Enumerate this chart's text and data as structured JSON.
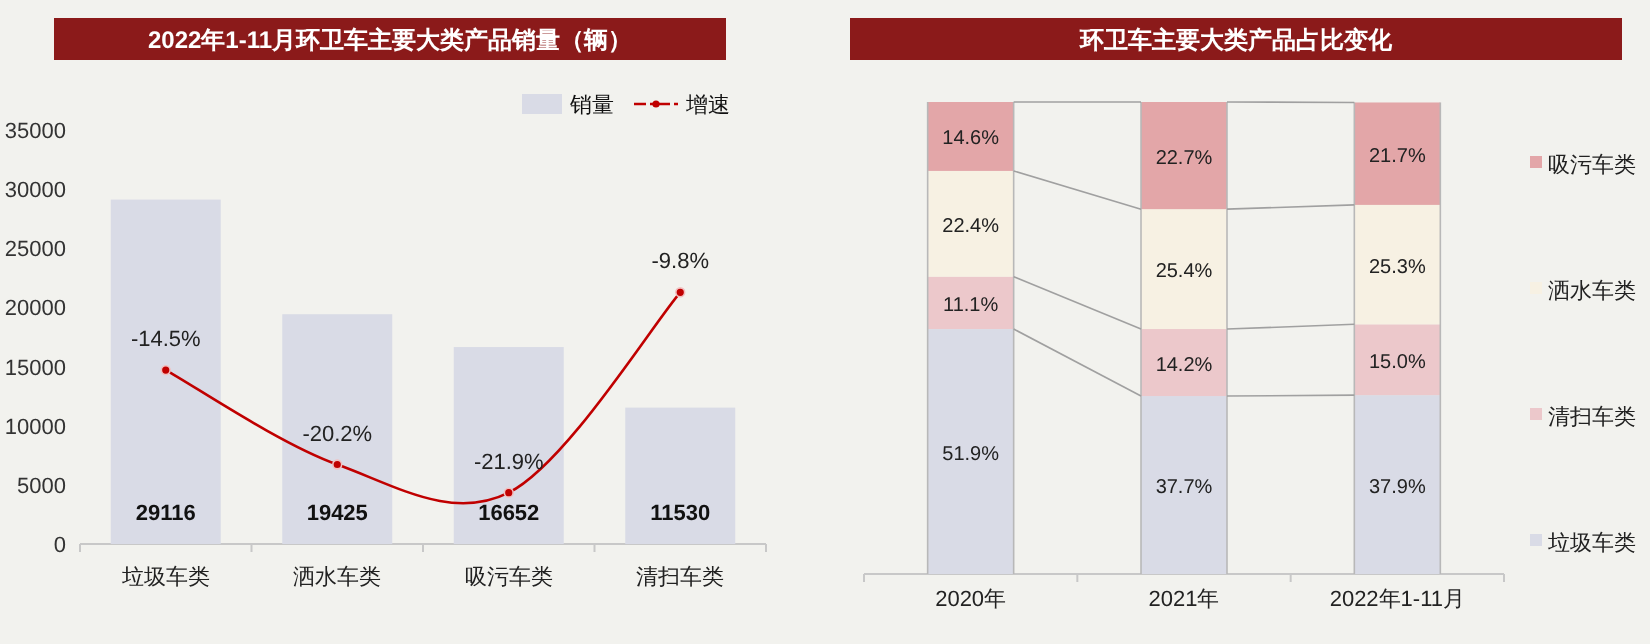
{
  "chart_data": [
    {
      "type": "bar",
      "title": "2022年1-11月环卫车主要大类产品销量（辆）",
      "categories": [
        "垃圾车类",
        "洒水车类",
        "吸污车类",
        "清扫车类"
      ],
      "series": [
        {
          "name": "销量",
          "color": "#d9dbe6",
          "values": [
            29116,
            19425,
            16652,
            11530
          ],
          "value_labels": [
            "29116",
            "19425",
            "16652",
            "11530"
          ]
        },
        {
          "name": "增速",
          "type": "line",
          "axis": "y2",
          "color": "#c00000",
          "values": [
            -14.5,
            -20.2,
            -21.9,
            -9.8
          ],
          "value_labels": [
            "-14.5%",
            "-20.2%",
            "-21.9%",
            "-9.8%"
          ]
        }
      ],
      "ylim": [
        0,
        35000
      ],
      "yticks": [
        0,
        5000,
        10000,
        15000,
        20000,
        25000,
        30000,
        35000
      ],
      "y2lim": [
        -25,
        0
      ],
      "legend": "top right",
      "marker": "circle"
    },
    {
      "type": "bar",
      "title": "环卫车主要大类产品占比变化",
      "categories": [
        "2020年",
        "2021年",
        "2022年1-11月"
      ],
      "stacked": true,
      "series": [
        {
          "name": "垃圾车类",
          "color": "#d9dbe6",
          "values": [
            51.9,
            37.7,
            37.9
          ],
          "value_labels": [
            "51.9%",
            "37.7%",
            "37.9%"
          ]
        },
        {
          "name": "清扫车类",
          "color": "#ecc8cb",
          "values": [
            11.1,
            14.2,
            15.0
          ],
          "value_labels": [
            "11.1%",
            "14.2%",
            "15.0%"
          ]
        },
        {
          "name": "洒水车类",
          "color": "#f7f1e3",
          "values": [
            22.4,
            25.4,
            25.3
          ],
          "value_labels": [
            "22.4%",
            "25.4%",
            "25.3%"
          ]
        },
        {
          "name": "吸污车类",
          "color": "#e3a6a8",
          "values": [
            14.6,
            22.7,
            21.7
          ],
          "value_labels": [
            "14.6%",
            "22.7%",
            "21.7%"
          ]
        }
      ],
      "ylim": [
        0,
        100
      ],
      "tick_labels": "x",
      "legend": "right"
    }
  ]
}
